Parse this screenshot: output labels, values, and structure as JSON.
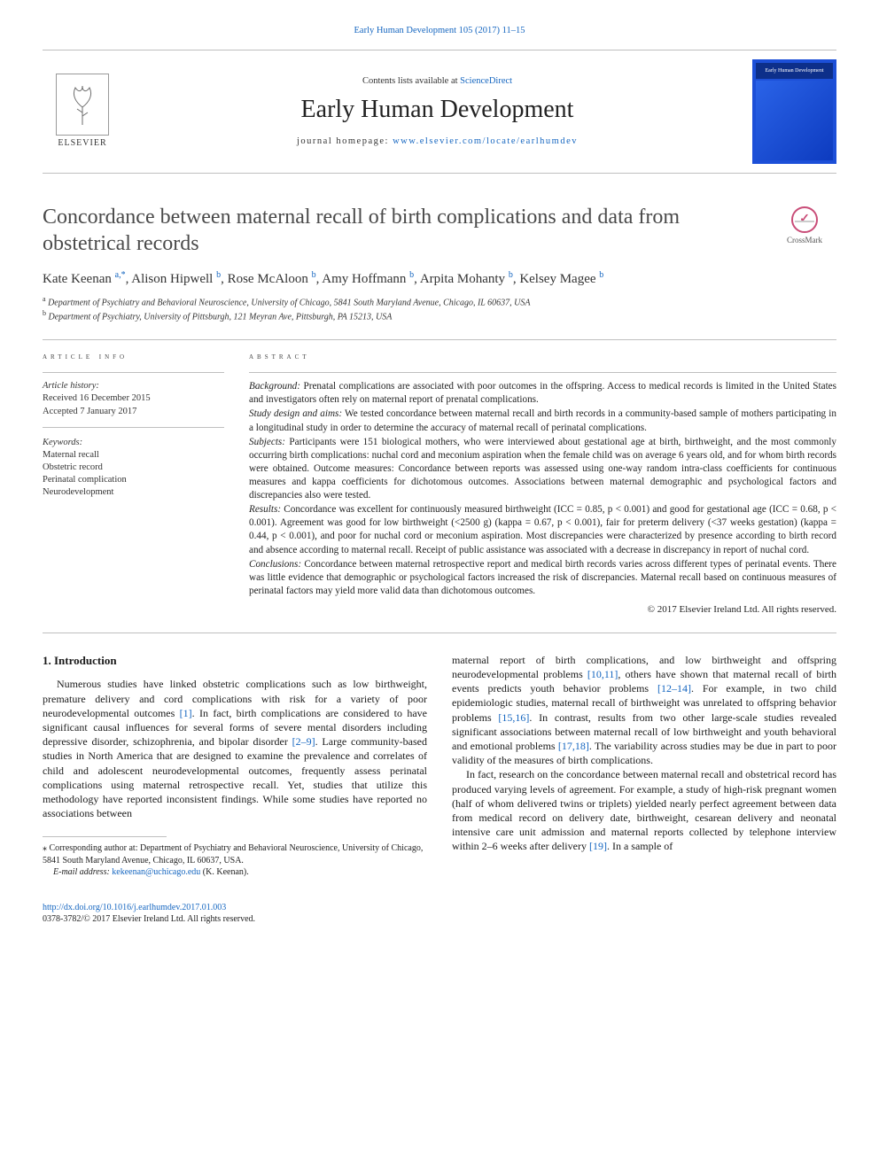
{
  "journal": {
    "topLink": "Early Human Development 105 (2017) 11–15",
    "contentsLine_pre": "Contents lists available at ",
    "contentsLine_link": "ScienceDirect",
    "name": "Early Human Development",
    "homepage_pre": "journal homepage: ",
    "homepage_link": "www.elsevier.com/locate/earlhumdev",
    "publisher": "ELSEVIER",
    "coverTitle": "Early Human Development"
  },
  "crossmark": "CrossMark",
  "article": {
    "title": "Concordance between maternal recall of birth complications and data from obstetrical records",
    "authors_html": "Kate Keenan <sup>a,*</sup>, Alison Hipwell <sup>b</sup>, Rose McAloon <sup>b</sup>, Amy Hoffmann <sup>b</sup>, Arpita Mohanty <sup>b</sup>, Kelsey Magee <sup>b</sup>",
    "affiliations": [
      {
        "sup": "a",
        "text": "Department of Psychiatry and Behavioral Neuroscience, University of Chicago, 5841 South Maryland Avenue, Chicago, IL 60637, USA"
      },
      {
        "sup": "b",
        "text": "Department of Psychiatry, University of Pittsburgh, 121 Meyran Ave, Pittsburgh, PA 15213, USA"
      }
    ]
  },
  "info": {
    "head": "article info",
    "history_label": "Article history:",
    "received": "Received 16 December 2015",
    "accepted": "Accepted 7 January 2017",
    "keywords_label": "Keywords:",
    "keywords": [
      "Maternal recall",
      "Obstetric record",
      "Perinatal complication",
      "Neurodevelopment"
    ]
  },
  "abstract": {
    "head": "abstract",
    "parts": [
      {
        "label": "Background:",
        "text": " Prenatal complications are associated with poor outcomes in the offspring. Access to medical records is limited in the United States and investigators often rely on maternal report of prenatal complications."
      },
      {
        "label": "Study design and aims:",
        "text": " We tested concordance between maternal recall and birth records in a community-based sample of mothers participating in a longitudinal study in order to determine the accuracy of maternal recall of perinatal complications."
      },
      {
        "label": "Subjects:",
        "text": " Participants were 151 biological mothers, who were interviewed about gestational age at birth, birthweight, and the most commonly occurring birth complications: nuchal cord and meconium aspiration when the female child was on average 6 years old, and for whom birth records were obtained. Outcome measures: Concordance between reports was assessed using one-way random intra-class coefficients for continuous measures and kappa coefficients for dichotomous outcomes. Associations between maternal demographic and psychological factors and discrepancies also were tested."
      },
      {
        "label": "Results:",
        "text": " Concordance was excellent for continuously measured birthweight (ICC = 0.85, p < 0.001) and good for gestational age (ICC = 0.68, p < 0.001). Agreement was good for low birthweight (<2500 g) (kappa = 0.67, p < 0.001), fair for preterm delivery (<37 weeks gestation) (kappa = 0.44, p < 0.001), and poor for nuchal cord or meconium aspiration. Most discrepancies were characterized by presence according to birth record and absence according to maternal recall. Receipt of public assistance was associated with a decrease in discrepancy in report of nuchal cord."
      },
      {
        "label": "Conclusions:",
        "text": " Concordance between maternal retrospective report and medical birth records varies across different types of perinatal events. There was little evidence that demographic or psychological factors increased the risk of discrepancies. Maternal recall based on continuous measures of perinatal factors may yield more valid data than dichotomous outcomes."
      }
    ],
    "copyright": "© 2017 Elsevier Ireland Ltd. All rights reserved."
  },
  "body": {
    "section1_head": "1. Introduction",
    "left_para": "Numerous studies have linked obstetric complications such as low birthweight, premature delivery and cord complications with risk for a variety of poor neurodevelopmental outcomes [1]. In fact, birth complications are considered to have significant causal influences for several forms of severe mental disorders including depressive disorder, schizophrenia, and bipolar disorder [2–9]. Large community-based studies in North America that are designed to examine the prevalence and correlates of child and adolescent neurodevelopmental outcomes, frequently assess perinatal complications using maternal retrospective recall. Yet, studies that utilize this methodology have reported inconsistent findings. While some studies have reported no associations between",
    "right_para1": "maternal report of birth complications, and low birthweight and offspring neurodevelopmental problems [10,11], others have shown that maternal recall of birth events predicts youth behavior problems [12–14]. For example, in two child epidemiologic studies, maternal recall of birthweight was unrelated to offspring behavior problems [15,16]. In contrast, results from two other large-scale studies revealed significant associations between maternal recall of low birthweight and youth behavioral and emotional problems [17,18]. The variability across studies may be due in part to poor validity of the measures of birth complications.",
    "right_para2": "In fact, research on the concordance between maternal recall and obstetrical record has produced varying levels of agreement. For example, a study of high-risk pregnant women (half of whom delivered twins or triplets) yielded nearly perfect agreement between data from medical record on delivery date, birthweight, cesarean delivery and neonatal intensive care unit admission and maternal reports collected by telephone interview within 2–6 weeks after delivery [19]. In a sample of",
    "refs_left": {
      "r1": "[1]",
      "r2": "[2–9]"
    },
    "refs_right": {
      "r10": "[10,11]",
      "r12": "[12–14]",
      "r15": "[15,16]",
      "r17": "[17,18]",
      "r19": "[19]"
    }
  },
  "footnote": {
    "corr": "⁎ Corresponding author at: Department of Psychiatry and Behavioral Neuroscience, University of Chicago, 5841 South Maryland Avenue, Chicago, IL 60637, USA.",
    "email_label": "E-mail address:",
    "email": "kekeenan@uchicago.edu",
    "email_who": "(K. Keenan)."
  },
  "footer": {
    "doi": "http://dx.doi.org/10.1016/j.earlhumdev.2017.01.003",
    "issn": "0378-3782/© 2017 Elsevier Ireland Ltd. All rights reserved."
  },
  "colors": {
    "link": "#1566c0",
    "rule": "#bfbfbf",
    "text": "#1a1a1a",
    "coverBlue": "#1c4fd8"
  }
}
